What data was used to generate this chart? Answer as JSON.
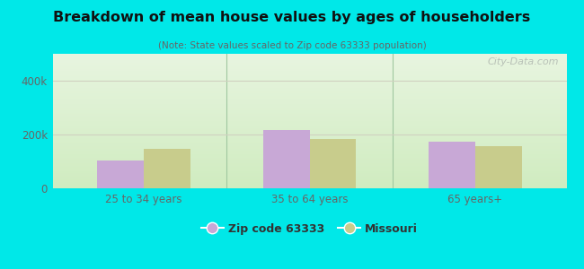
{
  "title": "Breakdown of mean house values by ages of householders",
  "subtitle": "(Note: State values scaled to Zip code 63333 population)",
  "categories": [
    "25 to 34 years",
    "35 to 64 years",
    "65 years+"
  ],
  "zip_values": [
    105000,
    218000,
    175000
  ],
  "state_values": [
    148000,
    185000,
    158000
  ],
  "ylim": [
    0,
    500000
  ],
  "ytick_vals": [
    0,
    200000,
    400000
  ],
  "ytick_labels": [
    "0",
    "200k",
    "400k"
  ],
  "zip_color": "#c8a8d6",
  "state_color": "#c8cc8c",
  "background_color": "#00e8e8",
  "plot_bg_top": "#e8f5e0",
  "plot_bg_bottom": "#d0ecc0",
  "grid_color": "#d0d0c0",
  "separator_color": "#a0c8a0",
  "legend_zip_label": "Zip code 63333",
  "legend_state_label": "Missouri",
  "bar_width": 0.28,
  "watermark": "City-Data.com"
}
